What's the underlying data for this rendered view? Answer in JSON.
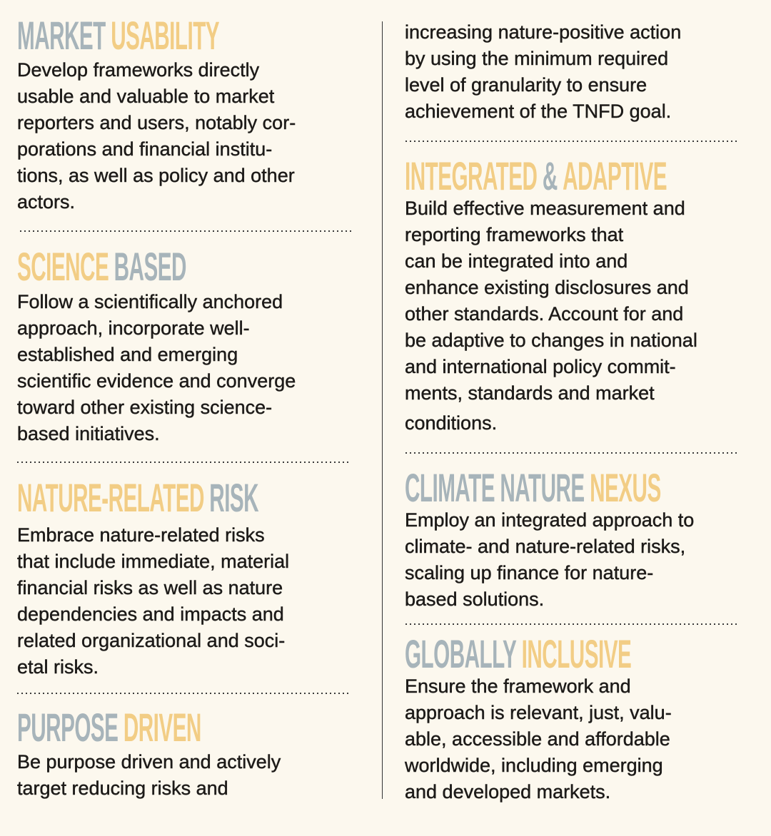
{
  "colors": {
    "gray": "#a7b4ba",
    "gold": "#f2cd85",
    "text": "#1d1b19",
    "background": "#fcf8ee"
  },
  "sections": [
    {
      "id": "market-usability",
      "heading": [
        {
          "text": "MARKET",
          "color": "gray"
        },
        {
          "text": "USABILITY",
          "color": "gold"
        }
      ],
      "lines": [
        "Develop frameworks directly",
        "usable and valuable to market",
        "reporters and users, notably cor-",
        "porations and financial institu-",
        "tions, as well as policy and other",
        "actors."
      ]
    },
    {
      "id": "science-based",
      "heading": [
        {
          "text": "SCIENCE",
          "color": "gold"
        },
        {
          "text": "BASED",
          "color": "gray"
        }
      ],
      "lines": [
        "Follow a scientifically anchored",
        "approach, incorporate well-",
        "established and emerging",
        "scientific evidence and converge",
        "toward other existing science-",
        "based initiatives."
      ]
    },
    {
      "id": "nature-related-risk",
      "heading": [
        {
          "text": "NATURE-RELATED",
          "color": "gold"
        },
        {
          "text": "RISK",
          "color": "gray"
        }
      ],
      "lines": [
        "Embrace nature-related risks",
        "that include immediate, material",
        "financial risks as well as nature",
        "dependencies and impacts and",
        "related organizational and soci-",
        "etal risks."
      ]
    },
    {
      "id": "purpose-driven",
      "heading": [
        {
          "text": "PURPOSE",
          "color": "gray"
        },
        {
          "text": "DRIVEN",
          "color": "gold"
        }
      ],
      "lines": [
        "Be purpose driven and actively",
        "target reducing risks and"
      ],
      "continued": [
        "increasing nature-positive action",
        "by using the minimum required",
        "level of granularity to ensure",
        "achievement of the TNFD goal."
      ]
    },
    {
      "id": "integrated-adaptive",
      "heading": [
        {
          "text": "INTEGRATED",
          "color": "gold"
        },
        {
          "text": "&",
          "color": "gray"
        },
        {
          "text": "ADAPTIVE",
          "color": "gold"
        }
      ],
      "lines": [
        "Build effective measurement and",
        "reporting frameworks that",
        "can be integrated into and",
        "enhance existing disclosures and",
        "other standards. Account for and",
        "be adaptive to changes in national",
        "and international policy commit-",
        "ments, standards and market",
        "conditions."
      ]
    },
    {
      "id": "climate-nature-nexus",
      "heading": [
        {
          "text": "CLIMATE",
          "color": "gray"
        },
        {
          "text": "NATURE",
          "color": "gray"
        },
        {
          "text": "NEXUS",
          "color": "gold"
        }
      ],
      "lines": [
        "Employ an integrated approach to",
        "climate- and nature-related risks,",
        "scaling up finance for nature-",
        "based solutions."
      ]
    },
    {
      "id": "globally-inclusive",
      "heading": [
        {
          "text": "GLOBALLY",
          "color": "gray"
        },
        {
          "text": "INCLUSIVE",
          "color": "gold"
        }
      ],
      "lines": [
        "Ensure the framework and",
        "approach is relevant, just, valu-",
        "able, accessible and affordable",
        "worldwide, including emerging",
        "and developed markets."
      ]
    }
  ]
}
